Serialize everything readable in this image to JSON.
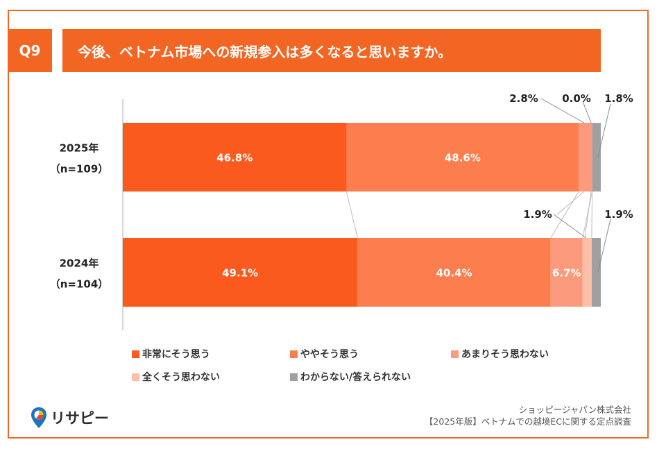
{
  "header": {
    "question_no": "Q9",
    "question": "今後、ベトナム市場への新規参入は多くなると思いますか。"
  },
  "colors": {
    "accent": "#f26522",
    "series": [
      "#fb5a1e",
      "#fc7d4d",
      "#fb9a7d",
      "#fcc0a8",
      "#a0a0a0"
    ]
  },
  "chart_data": {
    "type": "bar",
    "orientation": "horizontal",
    "stacked": true,
    "normalized_100": true,
    "categories": [
      {
        "year": "2025年",
        "n": "（n=109）"
      },
      {
        "year": "2024年",
        "n": "（n=104）"
      }
    ],
    "series": [
      {
        "name": "非常にそう思う",
        "values": [
          46.8,
          49.1
        ]
      },
      {
        "name": "ややそう思う",
        "values": [
          48.6,
          40.4
        ]
      },
      {
        "name": "あまりそう思わない",
        "values": [
          2.8,
          6.7
        ]
      },
      {
        "name": "全くそう思わない",
        "values": [
          0.0,
          1.9
        ]
      },
      {
        "name": "わからない/答えられない",
        "values": [
          1.8,
          1.9
        ]
      }
    ],
    "value_labels": [
      [
        "46.8%",
        "48.6%",
        "2.8%",
        "0.0%",
        "1.8%"
      ],
      [
        "49.1%",
        "40.4%",
        "6.7%",
        "1.9%",
        "1.9%"
      ]
    ],
    "legend_position": "bottom"
  },
  "footer": {
    "logo_text": "リサピー",
    "company": "ショッピージャパン株式会社",
    "survey": "【2025年版】ベトナムでの越境ECに関する定点調査"
  }
}
